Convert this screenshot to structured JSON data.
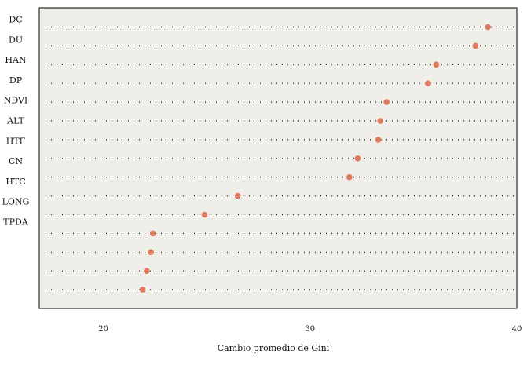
{
  "chart_data": {
    "type": "scatter",
    "title": "",
    "xlabel": "Cambio promedio de Gini",
    "ylabel": "",
    "xlim": [
      16.9,
      40
    ],
    "xticks": [
      20,
      30,
      40
    ],
    "grid": "dotted horizontal",
    "panel_color": "#efeee9",
    "point_color": "#e07a5f",
    "rows": [
      {
        "label": "DC",
        "value": 38.6
      },
      {
        "label": "DU",
        "value": 38.0
      },
      {
        "label": "HAN",
        "value": 36.1
      },
      {
        "label": "DP",
        "value": 35.7
      },
      {
        "label": "NDVI",
        "value": 33.7
      },
      {
        "label": "ALT",
        "value": 33.4
      },
      {
        "label": "HTF",
        "value": 33.3
      },
      {
        "label": "CN",
        "value": 32.3
      },
      {
        "label": "HTC",
        "value": 31.9
      },
      {
        "label": "LONG",
        "value": 26.5
      },
      {
        "label": "TPDA",
        "value": 24.9
      },
      {
        "label": "",
        "value": 22.4
      },
      {
        "label": "",
        "value": 22.3
      },
      {
        "label": "",
        "value": 22.1
      },
      {
        "label": "",
        "value": 21.9
      }
    ]
  }
}
